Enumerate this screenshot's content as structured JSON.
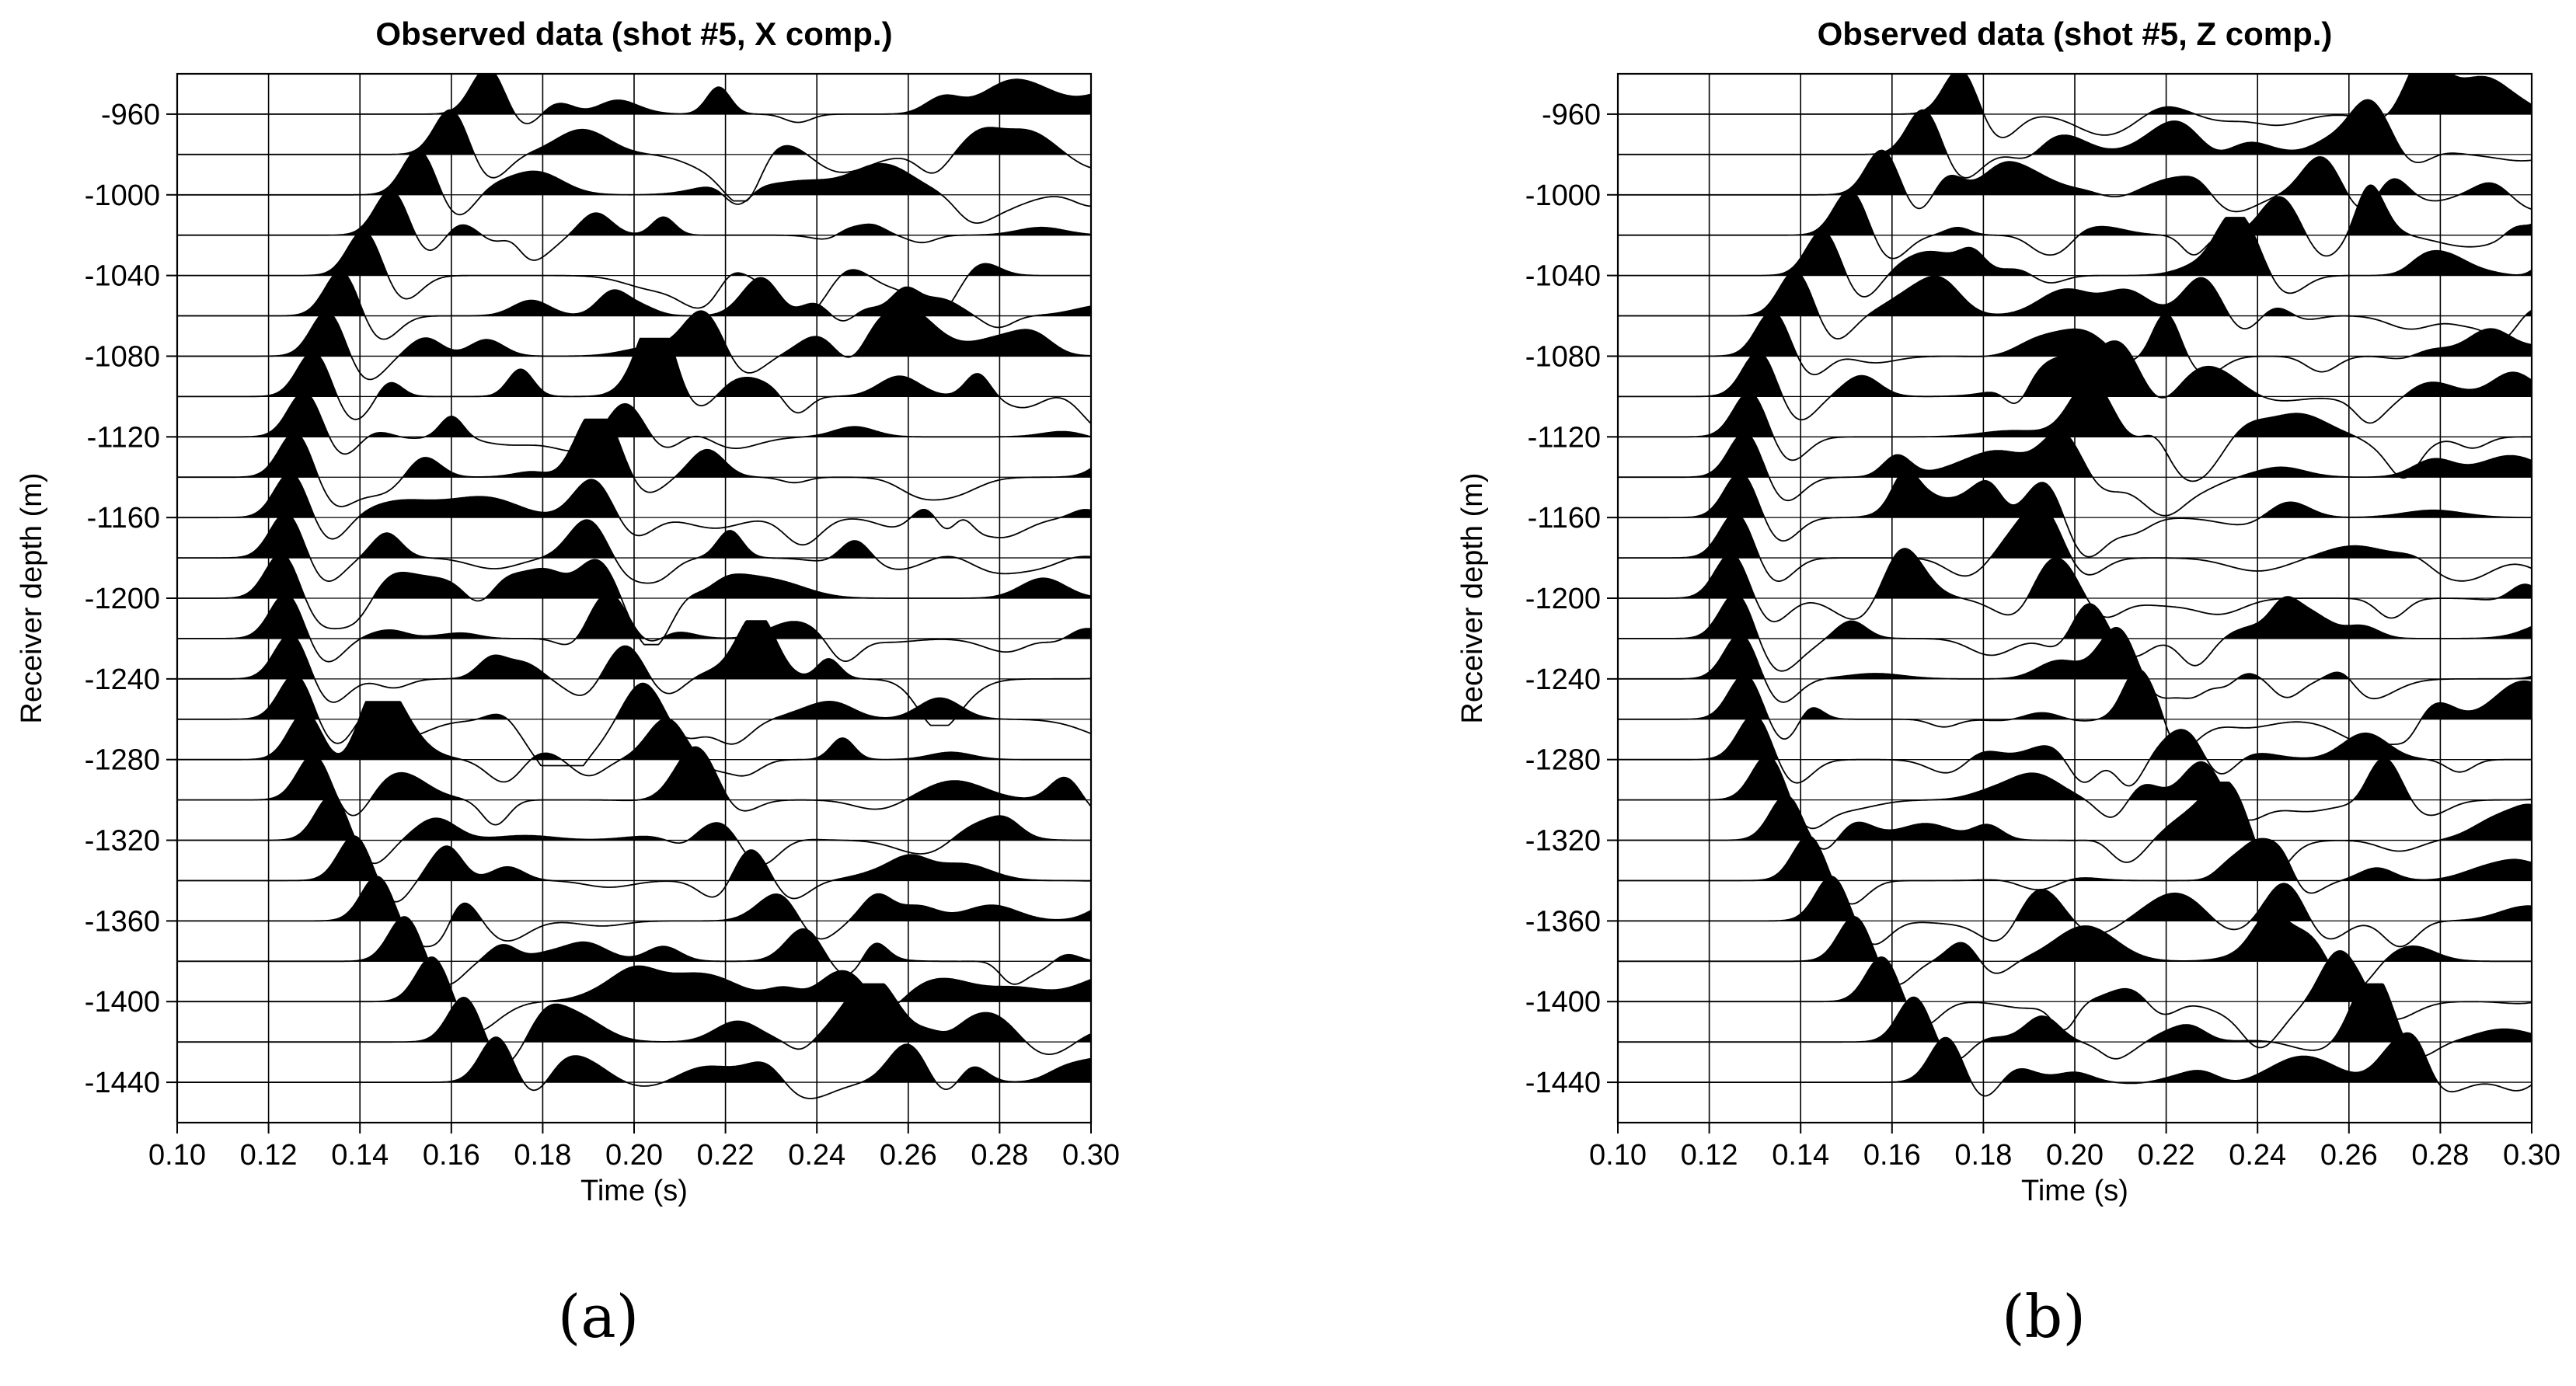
{
  "chart_data": [
    {
      "type": "line",
      "title": "Observed data (shot #5, X comp.)",
      "xlabel": "Time (s)",
      "ylabel": "Receiver depth (m)",
      "xlim": [
        0.1,
        0.3
      ],
      "ylim": [
        -1460,
        -940
      ],
      "x_ticks": [
        "0.10",
        "0.12",
        "0.14",
        "0.16",
        "0.18",
        "0.20",
        "0.22",
        "0.24",
        "0.26",
        "0.28",
        "0.30"
      ],
      "y_ticks": [
        "-960",
        "-1000",
        "-1040",
        "-1080",
        "-1120",
        "-1160",
        "-1200",
        "-1240",
        "-1280",
        "-1320",
        "-1360",
        "-1400",
        "-1440"
      ],
      "grid": true,
      "fill": "positive lobes filled black",
      "trace_spacing_m": 20,
      "receiver_depths": [
        -960,
        -980,
        -1000,
        -1020,
        -1040,
        -1060,
        -1080,
        -1100,
        -1120,
        -1140,
        -1160,
        -1180,
        -1200,
        -1220,
        -1240,
        -1260,
        -1280,
        -1300,
        -1320,
        -1340,
        -1360,
        -1380,
        -1400,
        -1420,
        -1440
      ],
      "first_arrival_times": [
        0.168,
        0.16,
        0.153,
        0.147,
        0.141,
        0.136,
        0.133,
        0.13,
        0.128,
        0.126,
        0.125,
        0.124,
        0.123,
        0.124,
        0.125,
        0.126,
        0.128,
        0.13,
        0.134,
        0.139,
        0.144,
        0.15,
        0.156,
        0.163,
        0.17
      ],
      "reflection_times": [
        null,
        null,
        null,
        null,
        null,
        0.228,
        0.215,
        0.205,
        0.198,
        0.193,
        0.191,
        0.19,
        0.192,
        0.194,
        0.198,
        0.202,
        0.207,
        0.213,
        0.219,
        0.225,
        0.231,
        0.238,
        0.245,
        0.252,
        0.26
      ]
    },
    {
      "type": "line",
      "title": "Observed data (shot #5, Z comp.)",
      "xlabel": "Time (s)",
      "ylabel": "Receiver depth (m)",
      "xlim": [
        0.1,
        0.3
      ],
      "ylim": [
        -1460,
        -940
      ],
      "x_ticks": [
        "0.10",
        "0.12",
        "0.14",
        "0.16",
        "0.18",
        "0.20",
        "0.22",
        "0.24",
        "0.26",
        "0.28",
        "0.30"
      ],
      "y_ticks": [
        "-960",
        "-1000",
        "-1040",
        "-1080",
        "-1120",
        "-1160",
        "-1200",
        "-1240",
        "-1280",
        "-1320",
        "-1360",
        "-1400",
        "-1440"
      ],
      "grid": true,
      "fill": "positive lobes filled black",
      "trace_spacing_m": 20,
      "receiver_depths": [
        -960,
        -980,
        -1000,
        -1020,
        -1040,
        -1060,
        -1080,
        -1100,
        -1120,
        -1140,
        -1160,
        -1180,
        -1200,
        -1220,
        -1240,
        -1260,
        -1280,
        -1300,
        -1320,
        -1340,
        -1360,
        -1380,
        -1400,
        -1420,
        -1440
      ],
      "first_arrival_times": [
        0.175,
        0.167,
        0.158,
        0.151,
        0.145,
        0.139,
        0.134,
        0.131,
        0.129,
        0.128,
        0.127,
        0.126,
        0.125,
        0.126,
        0.127,
        0.128,
        0.13,
        0.133,
        0.137,
        0.142,
        0.147,
        0.152,
        0.158,
        0.165,
        0.172
      ],
      "reflection_times": [
        0.276,
        0.265,
        0.254,
        0.245,
        0.237,
        0.228,
        0.219,
        0.21,
        0.203,
        0.197,
        0.194,
        0.193,
        0.197,
        0.203,
        0.209,
        0.216,
        0.222,
        0.228,
        0.234,
        0.24,
        0.246,
        0.252,
        0.258,
        0.264,
        0.271
      ]
    }
  ],
  "panel_labels": [
    "(a)",
    "(b)"
  ]
}
